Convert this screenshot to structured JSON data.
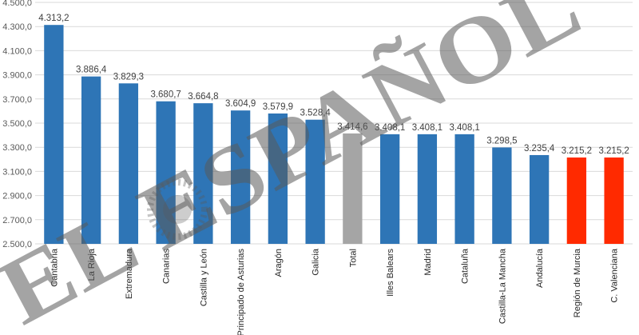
{
  "chart_data": {
    "type": "bar",
    "categories": [
      "Cantabria",
      "La Rioja",
      "Extremadura",
      "Canarias",
      "Castilla y León",
      "Principado de Asturias",
      "Aragón",
      "Galicia",
      "Total",
      "Illes Balears",
      "Madrid",
      "Cataluña",
      "Castilla-La Mancha",
      "Andalucía",
      "Región de Murcia",
      "C. Valenciana"
    ],
    "values": [
      4313.2,
      3886.4,
      3829.3,
      3680.7,
      3664.8,
      3604.9,
      3579.9,
      3528.4,
      3414.6,
      3408.1,
      3408.1,
      3408.1,
      3298.5,
      3235.4,
      3215.2,
      3215.2
    ],
    "data_labels": [
      "4.313,2",
      "3.886,4",
      "3.829,3",
      "3.680,7",
      "3.664,8",
      "3.604,9",
      "3.579,9",
      "3.528,4",
      "3.414,6",
      "3.408,1",
      "3.408,1",
      "3.408,1",
      "3.298,5",
      "3.235,4",
      "3.215,2",
      "3.215,2"
    ],
    "bar_colors": [
      "#2e75b6",
      "#2e75b6",
      "#2e75b6",
      "#2e75b6",
      "#2e75b6",
      "#2e75b6",
      "#2e75b6",
      "#2e75b6",
      "#a5a5a5",
      "#2e75b6",
      "#2e75b6",
      "#2e75b6",
      "#2e75b6",
      "#2e75b6",
      "#ff2a00",
      "#ff2a00"
    ],
    "ylim": [
      2500,
      4500
    ],
    "y_ticks": [
      2500,
      2700,
      2900,
      3100,
      3300,
      3500,
      3700,
      3900,
      4100,
      4300,
      4500
    ],
    "y_tick_labels": [
      "2.500,0",
      "2.700,0",
      "2.900,0",
      "3.100,0",
      "3.300,0",
      "3.500,0",
      "3.700,0",
      "3.900,0",
      "4.100,0",
      "4.300,0",
      "4.500,0"
    ],
    "grid": true,
    "legend": "none"
  },
  "watermark": {
    "text": "EL ESPAÑOL",
    "color": "#5a5a5a",
    "icon": "lion-head-emblem"
  }
}
